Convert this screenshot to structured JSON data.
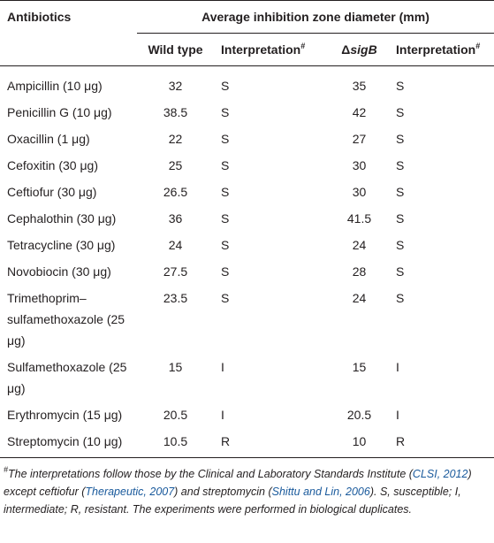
{
  "table": {
    "header": {
      "antibiotics": "Antibiotics",
      "group": "Average inhibition zone diameter (mm)",
      "columns": [
        {
          "text": "Wild type"
        },
        {
          "text": "Interpretation",
          "sup": "#"
        },
        {
          "prefix": "Δ",
          "italic": "sigB"
        },
        {
          "text": "Interpretation",
          "sup": "#"
        }
      ]
    },
    "rows": [
      [
        "Ampicillin (10 μg)",
        "32",
        "S",
        "35",
        "S"
      ],
      [
        "Penicillin G (10 μg)",
        "38.5",
        "S",
        "42",
        "S"
      ],
      [
        "Oxacillin (1 μg)",
        "22",
        "S",
        "27",
        "S"
      ],
      [
        "Cefoxitin (30 μg)",
        "25",
        "S",
        "30",
        "S"
      ],
      [
        "Ceftiofur (30 μg)",
        "26.5",
        "S",
        "30",
        "S"
      ],
      [
        "Cephalothin (30 μg)",
        "36",
        "S",
        "41.5",
        "S"
      ],
      [
        "Tetracycline (30 μg)",
        "24",
        "S",
        "24",
        "S"
      ],
      [
        "Novobiocin (30 μg)",
        "27.5",
        "S",
        "28",
        "S"
      ],
      [
        "Trimethoprim–sulfamethoxazole (25 μg)",
        "23.5",
        "S",
        "24",
        "S"
      ],
      [
        "Sulfamethoxazole (25 μg)",
        "15",
        "I",
        "15",
        "I"
      ],
      [
        "Erythromycin (15 μg)",
        "20.5",
        "I",
        "20.5",
        "I"
      ],
      [
        "Streptomycin (10 μg)",
        "10.5",
        "R",
        "10",
        "R"
      ]
    ]
  },
  "footnote": [
    {
      "text": "#",
      "style": "sup"
    },
    {
      "text": "The interpretations follow those by the Clinical and Laboratory Standards Institute (",
      "style": "italic"
    },
    {
      "text": "CLSI, 2012",
      "style": "cite"
    },
    {
      "text": ") except ceftiofur (",
      "style": "italic"
    },
    {
      "text": "Therapeutic, 2007",
      "style": "cite"
    },
    {
      "text": ") and streptomycin (",
      "style": "italic"
    },
    {
      "text": "Shittu and Lin, 2006",
      "style": "cite"
    },
    {
      "text": "). S, susceptible; I, intermediate; R, resistant. The experiments were performed in biological duplicates.",
      "style": "italic"
    }
  ]
}
